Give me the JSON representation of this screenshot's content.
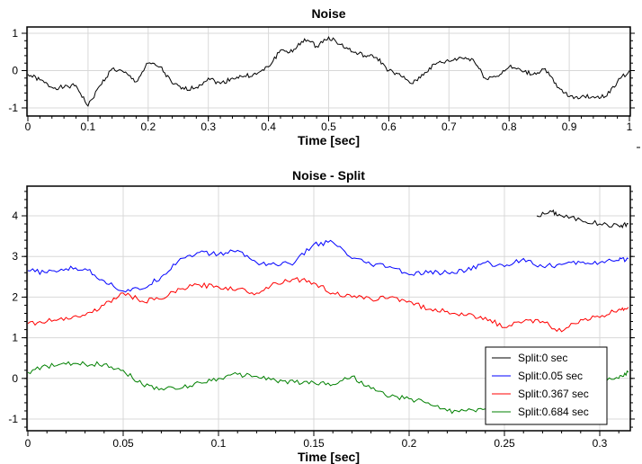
{
  "chart_data": [
    {
      "type": "line",
      "title": "Noise",
      "xlabel": "Time [sec]",
      "ylabel": "",
      "xlim": [
        0,
        1
      ],
      "ylim": [
        -1.15,
        1.2
      ],
      "grid": true,
      "xticks": [
        "0",
        "0.1",
        "0.2",
        "0.3",
        "0.4",
        "0.5",
        "0.6",
        "0.7",
        "0.8",
        "0.9",
        "1"
      ],
      "yticks": [
        "-1",
        "0",
        "1"
      ],
      "series": [
        {
          "name": "Noise",
          "color": "#000000",
          "x": [
            0,
            0.02,
            0.04,
            0.06,
            0.08,
            0.1,
            0.12,
            0.14,
            0.16,
            0.18,
            0.2,
            0.22,
            0.24,
            0.26,
            0.28,
            0.3,
            0.32,
            0.34,
            0.36,
            0.38,
            0.4,
            0.42,
            0.44,
            0.46,
            0.48,
            0.5,
            0.52,
            0.54,
            0.56,
            0.58,
            0.6,
            0.62,
            0.64,
            0.66,
            0.68,
            0.7,
            0.72,
            0.74,
            0.76,
            0.78,
            0.8,
            0.82,
            0.84,
            0.86,
            0.88,
            0.9,
            0.92,
            0.94,
            0.96,
            0.98,
            1.0
          ],
          "y": [
            -0.1,
            -0.25,
            -0.45,
            -0.45,
            -0.4,
            -0.95,
            -0.4,
            0.05,
            -0.05,
            -0.3,
            0.2,
            0.1,
            -0.35,
            -0.5,
            -0.45,
            -0.2,
            -0.35,
            -0.2,
            -0.15,
            -0.1,
            0.1,
            0.55,
            0.5,
            0.85,
            0.65,
            0.9,
            0.7,
            0.5,
            0.4,
            0.35,
            0.0,
            -0.15,
            -0.35,
            -0.05,
            0.2,
            0.25,
            0.35,
            0.3,
            -0.2,
            -0.15,
            0.1,
            0.0,
            -0.1,
            0.05,
            -0.45,
            -0.7,
            -0.7,
            -0.7,
            -0.7,
            -0.3,
            0.0
          ]
        }
      ]
    },
    {
      "type": "line",
      "title": "Noise - Split",
      "xlabel": "Time [sec]",
      "ylabel": "",
      "xlim": [
        0,
        0.316
      ],
      "ylim": [
        -1.3,
        4.7
      ],
      "grid": true,
      "legend": "bottom-right",
      "xticks": [
        "0",
        "0.05",
        "0.1",
        "0.15",
        "0.2",
        "0.25",
        "0.3"
      ],
      "yticks": [
        "-1",
        "0",
        "1",
        "2",
        "3",
        "4"
      ],
      "series": [
        {
          "name": "Split:0 sec",
          "color": "#000000",
          "x": [
            0.267,
            0.275,
            0.28,
            0.29,
            0.3,
            0.31,
            0.315
          ],
          "y": [
            4.0,
            4.1,
            4.0,
            3.9,
            3.8,
            3.75,
            3.8
          ]
        },
        {
          "name": "Split:0.05 sec",
          "color": "#0000ff",
          "x": [
            0,
            0.01,
            0.02,
            0.03,
            0.04,
            0.05,
            0.06,
            0.07,
            0.08,
            0.09,
            0.1,
            0.11,
            0.12,
            0.13,
            0.14,
            0.15,
            0.16,
            0.17,
            0.18,
            0.19,
            0.2,
            0.21,
            0.22,
            0.23,
            0.24,
            0.25,
            0.26,
            0.27,
            0.28,
            0.29,
            0.3,
            0.31,
            0.315
          ],
          "y": [
            2.65,
            2.6,
            2.7,
            2.7,
            2.4,
            2.15,
            2.2,
            2.5,
            2.95,
            3.1,
            3.05,
            3.15,
            2.85,
            2.8,
            2.85,
            3.3,
            3.35,
            2.95,
            2.8,
            2.75,
            2.55,
            2.6,
            2.6,
            2.65,
            2.85,
            2.75,
            2.95,
            2.75,
            2.8,
            2.85,
            2.85,
            2.9,
            2.95
          ]
        },
        {
          "name": "Split:0.367 sec",
          "color": "#ff0000",
          "x": [
            0,
            0.01,
            0.02,
            0.03,
            0.04,
            0.05,
            0.06,
            0.07,
            0.08,
            0.09,
            0.1,
            0.11,
            0.12,
            0.13,
            0.14,
            0.15,
            0.16,
            0.17,
            0.18,
            0.19,
            0.2,
            0.21,
            0.22,
            0.23,
            0.24,
            0.25,
            0.26,
            0.27,
            0.28,
            0.29,
            0.3,
            0.31,
            0.315
          ],
          "y": [
            1.35,
            1.4,
            1.5,
            1.55,
            1.8,
            2.1,
            1.9,
            1.95,
            2.2,
            2.3,
            2.25,
            2.2,
            2.1,
            2.35,
            2.45,
            2.35,
            2.1,
            2.0,
            1.95,
            2.0,
            1.9,
            1.7,
            1.65,
            1.55,
            1.5,
            1.25,
            1.4,
            1.4,
            1.15,
            1.45,
            1.5,
            1.7,
            1.75
          ]
        },
        {
          "name": "Split:0.684 sec",
          "color": "#008000",
          "x": [
            0,
            0.01,
            0.02,
            0.03,
            0.04,
            0.05,
            0.06,
            0.07,
            0.08,
            0.09,
            0.1,
            0.11,
            0.12,
            0.13,
            0.14,
            0.15,
            0.16,
            0.17,
            0.18,
            0.19,
            0.2,
            0.21,
            0.22,
            0.23,
            0.24,
            0.25,
            0.26,
            0.27,
            0.28,
            0.29,
            0.3,
            0.31,
            0.315
          ],
          "y": [
            0.15,
            0.3,
            0.35,
            0.35,
            0.35,
            0.2,
            -0.15,
            -0.25,
            -0.25,
            -0.1,
            0.0,
            0.1,
            0.05,
            -0.05,
            -0.1,
            -0.1,
            -0.15,
            0.05,
            -0.25,
            -0.45,
            -0.5,
            -0.6,
            -0.8,
            -0.8,
            -0.75,
            -0.7,
            -0.6,
            -0.5,
            -0.3,
            -0.15,
            0.0,
            0.0,
            0.15
          ]
        }
      ]
    }
  ]
}
